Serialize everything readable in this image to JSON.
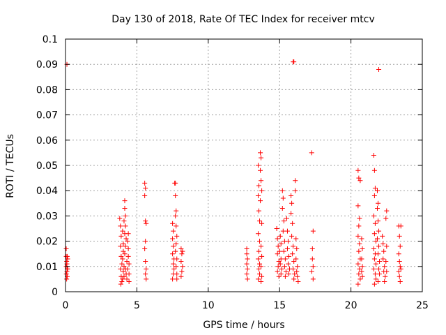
{
  "chart_data": {
    "type": "scatter",
    "title": "Day 130 of 2018, Rate Of TEC Index for receiver mtcv",
    "xlabel": "GPS time / hours",
    "ylabel": "ROTI / TECUs",
    "xlim": [
      0,
      25
    ],
    "ylim": [
      0,
      0.1
    ],
    "x_ticks": [
      "0",
      "5",
      "10",
      "15",
      "20",
      "25"
    ],
    "y_ticks": [
      "0",
      "0.01",
      "0.02",
      "0.03",
      "0.04",
      "0.05",
      "0.06",
      "0.07",
      "0.08",
      "0.09",
      "0.1"
    ],
    "grid": true,
    "marker": "+",
    "color": "#ff0000",
    "series": [
      {
        "name": "ROTI",
        "points": [
          [
            0.05,
            0.017
          ],
          [
            0.05,
            0.014
          ],
          [
            0.08,
            0.012
          ],
          [
            0.1,
            0.011
          ],
          [
            0.12,
            0.009
          ],
          [
            0.1,
            0.008
          ],
          [
            0.06,
            0.007
          ],
          [
            0.12,
            0.006
          ],
          [
            0.15,
            0.013
          ],
          [
            0.08,
            0.005
          ],
          [
            0.05,
            0.01
          ],
          [
            0.15,
            0.009
          ],
          [
            0.12,
            0.014
          ],
          [
            0.1,
            0.09
          ],
          [
            3.8,
            0.029
          ],
          [
            3.85,
            0.026
          ],
          [
            3.9,
            0.022
          ],
          [
            3.85,
            0.018
          ],
          [
            3.9,
            0.014
          ],
          [
            3.95,
            0.011
          ],
          [
            3.85,
            0.009
          ],
          [
            3.9,
            0.006
          ],
          [
            3.95,
            0.004
          ],
          [
            3.88,
            0.003
          ],
          [
            4.0,
            0.024
          ],
          [
            4.05,
            0.019
          ],
          [
            4.05,
            0.016
          ],
          [
            4.0,
            0.013
          ],
          [
            4.1,
            0.01
          ],
          [
            4.05,
            0.008
          ],
          [
            4.1,
            0.006
          ],
          [
            4.0,
            0.005
          ],
          [
            4.15,
            0.036
          ],
          [
            4.15,
            0.033
          ],
          [
            4.2,
            0.03
          ],
          [
            4.1,
            0.028
          ],
          [
            4.2,
            0.026
          ],
          [
            4.15,
            0.023
          ],
          [
            4.25,
            0.021
          ],
          [
            4.2,
            0.018
          ],
          [
            4.15,
            0.015
          ],
          [
            4.3,
            0.012
          ],
          [
            4.2,
            0.009
          ],
          [
            4.25,
            0.007
          ],
          [
            4.3,
            0.005
          ],
          [
            4.35,
            0.02
          ],
          [
            4.4,
            0.017
          ],
          [
            4.4,
            0.014
          ],
          [
            4.45,
            0.011
          ],
          [
            4.35,
            0.009
          ],
          [
            4.45,
            0.007
          ],
          [
            4.4,
            0.023
          ],
          [
            4.45,
            0.004
          ],
          [
            5.55,
            0.043
          ],
          [
            5.6,
            0.041
          ],
          [
            5.55,
            0.038
          ],
          [
            5.6,
            0.028
          ],
          [
            5.65,
            0.027
          ],
          [
            5.6,
            0.02
          ],
          [
            5.55,
            0.017
          ],
          [
            5.6,
            0.012
          ],
          [
            5.65,
            0.009
          ],
          [
            5.6,
            0.007
          ],
          [
            5.65,
            0.005
          ],
          [
            7.5,
            0.027
          ],
          [
            7.55,
            0.024
          ],
          [
            7.5,
            0.021
          ],
          [
            7.55,
            0.018
          ],
          [
            7.5,
            0.015
          ],
          [
            7.6,
            0.013
          ],
          [
            7.55,
            0.011
          ],
          [
            7.6,
            0.009
          ],
          [
            7.55,
            0.007
          ],
          [
            7.5,
            0.005
          ],
          [
            7.65,
            0.043
          ],
          [
            7.7,
            0.043
          ],
          [
            7.7,
            0.038
          ],
          [
            7.75,
            0.032
          ],
          [
            7.7,
            0.03
          ],
          [
            7.75,
            0.026
          ],
          [
            7.8,
            0.022
          ],
          [
            7.75,
            0.019
          ],
          [
            7.7,
            0.016
          ],
          [
            7.8,
            0.013
          ],
          [
            7.75,
            0.01
          ],
          [
            7.8,
            0.007
          ],
          [
            7.8,
            0.005
          ],
          [
            8.1,
            0.017
          ],
          [
            8.15,
            0.015
          ],
          [
            8.2,
            0.016
          ],
          [
            8.1,
            0.012
          ],
          [
            8.2,
            0.01
          ],
          [
            8.15,
            0.008
          ],
          [
            8.1,
            0.006
          ],
          [
            12.7,
            0.017
          ],
          [
            12.7,
            0.015
          ],
          [
            12.75,
            0.013
          ],
          [
            12.7,
            0.011
          ],
          [
            12.75,
            0.009
          ],
          [
            12.7,
            0.007
          ],
          [
            12.75,
            0.005
          ],
          [
            13.5,
            0.05
          ],
          [
            13.55,
            0.042
          ],
          [
            13.5,
            0.038
          ],
          [
            13.55,
            0.032
          ],
          [
            13.6,
            0.028
          ],
          [
            13.5,
            0.023
          ],
          [
            13.6,
            0.02
          ],
          [
            13.55,
            0.016
          ],
          [
            13.5,
            0.013
          ],
          [
            13.6,
            0.011
          ],
          [
            13.55,
            0.009
          ],
          [
            13.6,
            0.007
          ],
          [
            13.5,
            0.005
          ],
          [
            13.65,
            0.055
          ],
          [
            13.7,
            0.053
          ],
          [
            13.65,
            0.048
          ],
          [
            13.7,
            0.044
          ],
          [
            13.75,
            0.04
          ],
          [
            13.65,
            0.036
          ],
          [
            13.75,
            0.027
          ],
          [
            13.7,
            0.018
          ],
          [
            13.75,
            0.014
          ],
          [
            13.7,
            0.01
          ],
          [
            13.75,
            0.006
          ],
          [
            13.7,
            0.004
          ],
          [
            14.8,
            0.025
          ],
          [
            14.85,
            0.021
          ],
          [
            14.9,
            0.018
          ],
          [
            14.85,
            0.015
          ],
          [
            14.95,
            0.012
          ],
          [
            14.9,
            0.01
          ],
          [
            14.85,
            0.008
          ],
          [
            14.95,
            0.006
          ],
          [
            15.05,
            0.022
          ],
          [
            15.1,
            0.019
          ],
          [
            15.0,
            0.016
          ],
          [
            15.1,
            0.013
          ],
          [
            15.05,
            0.011
          ],
          [
            15.15,
            0.009
          ],
          [
            15.1,
            0.007
          ],
          [
            15.2,
            0.04
          ],
          [
            15.25,
            0.037
          ],
          [
            15.2,
            0.033
          ],
          [
            15.3,
            0.028
          ],
          [
            15.25,
            0.024
          ],
          [
            15.35,
            0.02
          ],
          [
            15.3,
            0.016
          ],
          [
            15.4,
            0.013
          ],
          [
            15.35,
            0.01
          ],
          [
            15.45,
            0.008
          ],
          [
            15.4,
            0.006
          ],
          [
            15.5,
            0.029
          ],
          [
            15.55,
            0.024
          ],
          [
            15.6,
            0.02
          ],
          [
            15.55,
            0.017
          ],
          [
            15.65,
            0.014
          ],
          [
            15.6,
            0.011
          ],
          [
            15.7,
            0.009
          ],
          [
            15.65,
            0.007
          ],
          [
            15.8,
            0.038
          ],
          [
            15.85,
            0.035
          ],
          [
            15.8,
            0.031
          ],
          [
            15.9,
            0.027
          ],
          [
            15.85,
            0.022
          ],
          [
            15.95,
            0.018
          ],
          [
            15.9,
            0.015
          ],
          [
            16.0,
            0.012
          ],
          [
            15.95,
            0.009
          ],
          [
            16.05,
            0.007
          ],
          [
            16.0,
            0.005
          ],
          [
            15.95,
            0.091
          ],
          [
            16.0,
            0.091
          ],
          [
            16.1,
            0.044
          ],
          [
            16.1,
            0.04
          ],
          [
            16.15,
            0.021
          ],
          [
            16.2,
            0.017
          ],
          [
            16.15,
            0.013
          ],
          [
            16.25,
            0.01
          ],
          [
            16.2,
            0.008
          ],
          [
            16.25,
            0.006
          ],
          [
            16.3,
            0.004
          ],
          [
            17.25,
            0.055
          ],
          [
            17.35,
            0.024
          ],
          [
            17.3,
            0.017
          ],
          [
            17.3,
            0.013
          ],
          [
            17.35,
            0.01
          ],
          [
            17.25,
            0.008
          ],
          [
            17.35,
            0.005
          ],
          [
            20.5,
            0.048
          ],
          [
            20.55,
            0.045
          ],
          [
            20.65,
            0.044
          ],
          [
            20.5,
            0.034
          ],
          [
            20.6,
            0.029
          ],
          [
            20.55,
            0.026
          ],
          [
            20.5,
            0.022
          ],
          [
            20.6,
            0.019
          ],
          [
            20.55,
            0.016
          ],
          [
            20.65,
            0.013
          ],
          [
            20.5,
            0.011
          ],
          [
            20.6,
            0.009
          ],
          [
            20.55,
            0.007
          ],
          [
            20.65,
            0.005
          ],
          [
            20.5,
            0.003
          ],
          [
            20.75,
            0.021
          ],
          [
            20.8,
            0.017
          ],
          [
            20.75,
            0.013
          ],
          [
            20.8,
            0.01
          ],
          [
            20.75,
            0.008
          ],
          [
            20.8,
            0.006
          ],
          [
            21.6,
            0.054
          ],
          [
            21.65,
            0.048
          ],
          [
            21.7,
            0.041
          ],
          [
            21.65,
            0.038
          ],
          [
            21.6,
            0.03
          ],
          [
            21.7,
            0.027
          ],
          [
            21.65,
            0.023
          ],
          [
            21.75,
            0.02
          ],
          [
            21.6,
            0.017
          ],
          [
            21.7,
            0.015
          ],
          [
            21.65,
            0.013
          ],
          [
            21.75,
            0.011
          ],
          [
            21.6,
            0.009
          ],
          [
            21.7,
            0.007
          ],
          [
            21.75,
            0.005
          ],
          [
            21.65,
            0.003
          ],
          [
            21.85,
            0.04
          ],
          [
            21.9,
            0.035
          ],
          [
            21.85,
            0.033
          ],
          [
            21.9,
            0.028
          ],
          [
            21.95,
            0.024
          ],
          [
            21.85,
            0.021
          ],
          [
            21.95,
            0.018
          ],
          [
            21.9,
            0.015
          ],
          [
            22.0,
            0.012
          ],
          [
            21.95,
            0.009
          ],
          [
            22.0,
            0.007
          ],
          [
            21.9,
            0.004
          ],
          [
            21.95,
            0.088
          ],
          [
            22.2,
            0.022
          ],
          [
            22.25,
            0.019
          ],
          [
            22.3,
            0.016
          ],
          [
            22.25,
            0.013
          ],
          [
            22.35,
            0.01
          ],
          [
            22.3,
            0.008
          ],
          [
            22.4,
            0.006
          ],
          [
            22.35,
            0.004
          ],
          [
            22.5,
            0.032
          ],
          [
            22.45,
            0.029
          ],
          [
            22.5,
            0.018
          ],
          [
            22.45,
            0.012
          ],
          [
            22.5,
            0.008
          ],
          [
            23.35,
            0.026
          ],
          [
            23.4,
            0.022
          ],
          [
            23.45,
            0.018
          ],
          [
            23.35,
            0.015
          ],
          [
            23.4,
            0.012
          ],
          [
            23.45,
            0.01
          ],
          [
            23.35,
            0.008
          ],
          [
            23.4,
            0.006
          ],
          [
            23.45,
            0.004
          ],
          [
            23.5,
            0.026
          ],
          [
            23.5,
            0.009
          ]
        ]
      }
    ]
  }
}
